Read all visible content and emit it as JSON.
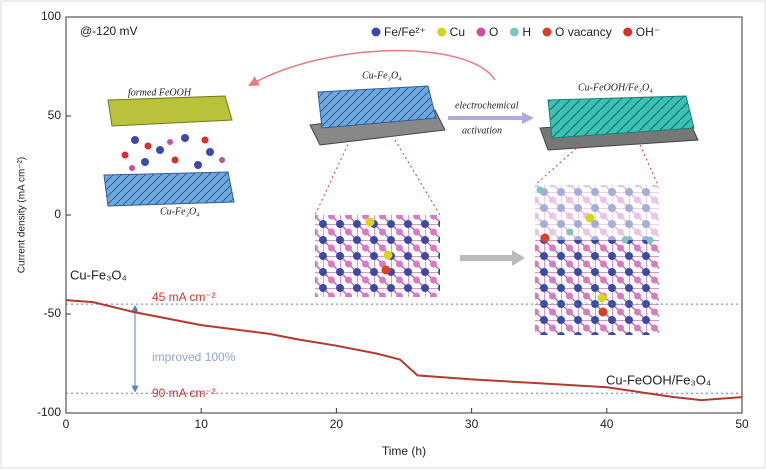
{
  "chart_data": {
    "type": "line",
    "xlabel": "Time (h)",
    "ylabel": "Current density (mA cm⁻²)",
    "x": [
      0,
      2,
      5,
      10,
      15,
      17.3,
      20,
      23,
      24.7,
      26,
      30,
      35,
      40,
      43,
      45,
      47,
      50
    ],
    "values": [
      -43,
      -44,
      -49,
      -55.6,
      -60,
      -63,
      -66,
      -70,
      -73,
      -81,
      -83,
      -85,
      -87,
      -90,
      -92,
      -93.5,
      -92
    ],
    "color": "#b23a2e",
    "xlim": [
      0,
      50
    ],
    "xticks": [
      0,
      10,
      20,
      30,
      40,
      50
    ],
    "ylim": [
      -100,
      100
    ],
    "yticks": [
      -100,
      -50,
      0,
      50,
      100
    ],
    "reference_lines": [
      -45,
      -90
    ],
    "reference_color": "#5b7fd0",
    "condition": "@-120 mV",
    "start_label": "Cu-Fe₃O₄",
    "end_label": "Cu-FeOOH/Fe₃O₄",
    "initial_label": "45 mA cm⁻²",
    "final_label": "90 mA cm⁻²",
    "improvement_label": "improved 100%",
    "atom_legend": [
      {
        "name": "Fe/Fe²⁺",
        "color": "#3b4aa8"
      },
      {
        "name": "Cu",
        "color": "#d6d41e"
      },
      {
        "name": "O",
        "color": "#c8509c"
      },
      {
        "name": "H",
        "color": "#7fc4c0"
      },
      {
        "name": "O vacancy",
        "color": "#d8402a"
      },
      {
        "name": "OH⁻",
        "color": "#d8302a"
      }
    ],
    "inset_labels": {
      "formed": "formed FeOOH",
      "bottom_slab": "Cu-Fe₃O₄",
      "before": "Cu-Fe₃O₄",
      "process_1": "electrochemical",
      "process_2": "activation",
      "after": "Cu-FeOOH/Fe₃O₄"
    }
  }
}
